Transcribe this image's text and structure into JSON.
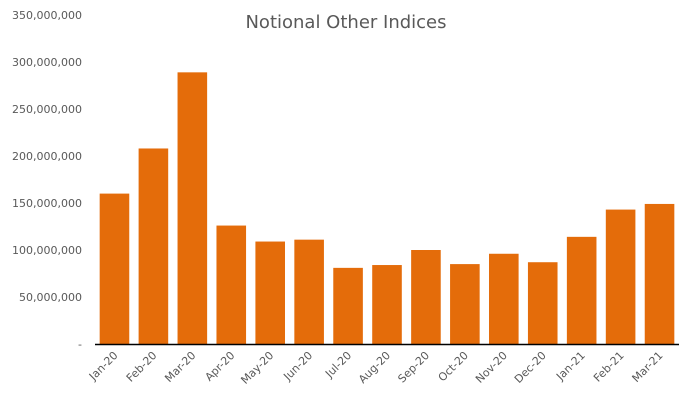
{
  "chart_data": {
    "type": "bar",
    "title": "Notional Other Indices",
    "xlabel": "",
    "ylabel": "",
    "categories": [
      "Jan-20",
      "Feb-20",
      "Mar-20",
      "Apr-20",
      "May-20",
      "Jun-20",
      "Jul-20",
      "Aug-20",
      "Sep-20",
      "Oct-20",
      "Nov-20",
      "Dec-20",
      "Jan-21",
      "Feb-21",
      "Mar-21"
    ],
    "values": [
      160000000,
      208000000,
      289000000,
      126000000,
      109000000,
      111000000,
      81000000,
      84000000,
      100000000,
      85000000,
      96000000,
      87000000,
      114000000,
      143000000,
      149000000
    ],
    "ylim": [
      0,
      350000000
    ],
    "yticks": [
      0,
      50000000,
      100000000,
      150000000,
      200000000,
      250000000,
      300000000,
      350000000
    ],
    "ytick_labels": [
      "-",
      "50,000,000",
      "100,000,000",
      "150,000,000",
      "200,000,000",
      "250,000,000",
      "300,000,000",
      "350,000,000"
    ],
    "grid": false,
    "legend": "none",
    "bar_color": "#E46C0A",
    "axis_color": "#000000",
    "text_color": "#595959"
  }
}
